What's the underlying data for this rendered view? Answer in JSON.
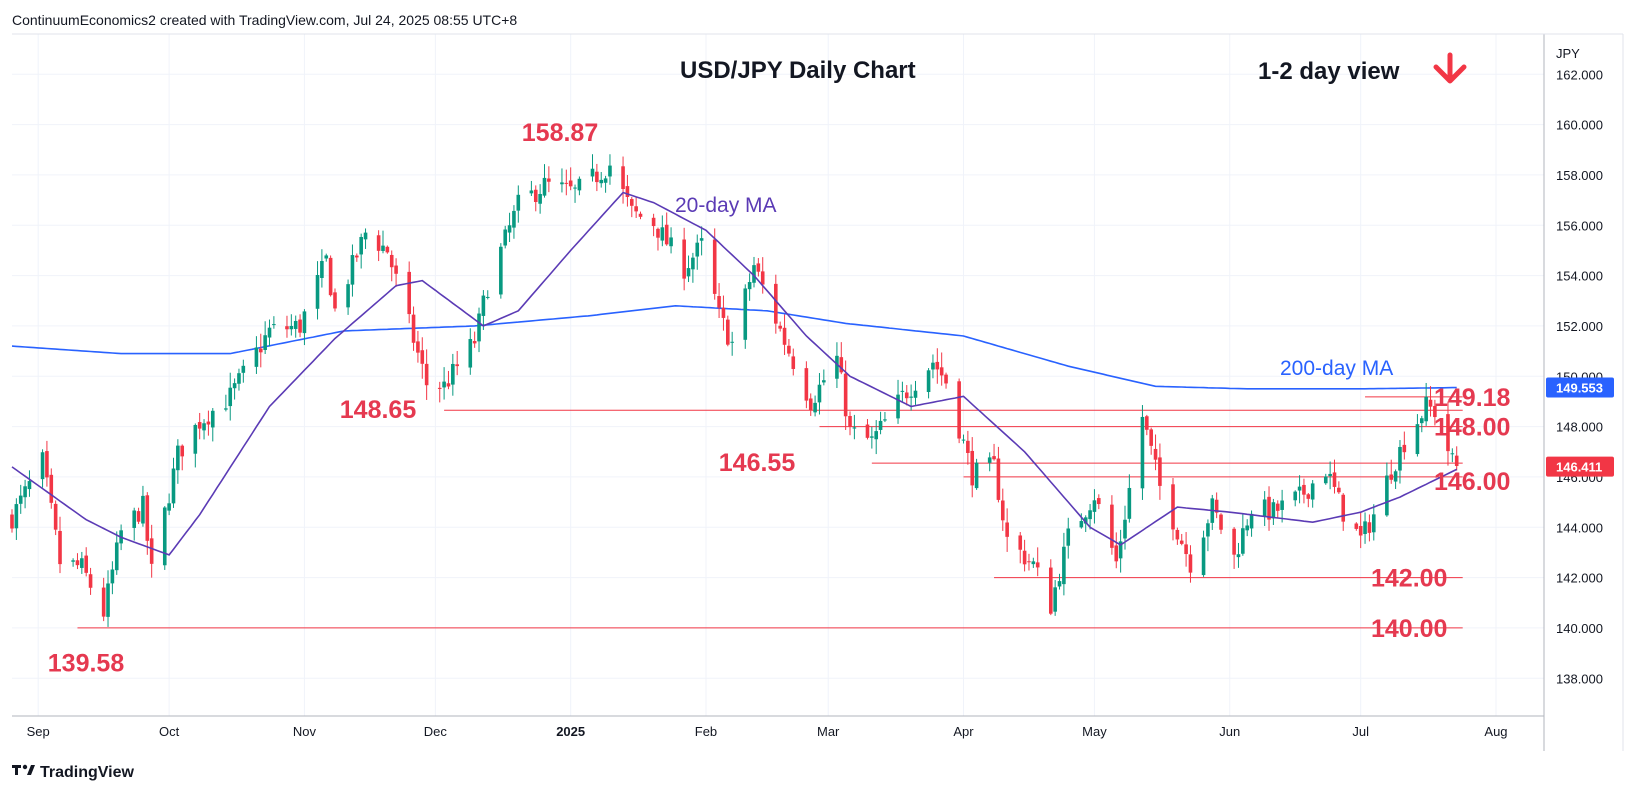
{
  "header": {
    "credit": "ContinuumEconomics2 created with TradingView.com, Jul 24, 2025 08:55 UTC+8"
  },
  "footer": {
    "brand": "TradingView",
    "logo_icon": "tradingview-logo-icon"
  },
  "chart_data": {
    "type": "candlestick",
    "title": "USD/JPY Daily Chart",
    "view_label": "1-2 day view",
    "view_direction": "down",
    "currency": "JPY",
    "ylim": [
      136.5,
      163.6
    ],
    "yticks": [
      "138.000",
      "140.000",
      "142.000",
      "144.000",
      "146.000",
      "148.000",
      "150.000",
      "152.000",
      "154.000",
      "156.000",
      "158.000",
      "160.000",
      "162.000"
    ],
    "date_range": [
      "2024-08-26",
      "2025-08-12"
    ],
    "xticks": [
      {
        "date": "2024-09-01",
        "label": "Sep"
      },
      {
        "date": "2024-10-01",
        "label": "Oct"
      },
      {
        "date": "2024-11-01",
        "label": "Nov"
      },
      {
        "date": "2024-12-01",
        "label": "Dec"
      },
      {
        "date": "2025-01-01",
        "label": "2025",
        "bold": true
      },
      {
        "date": "2025-02-01",
        "label": "Feb"
      },
      {
        "date": "2025-03-01",
        "label": "Mar"
      },
      {
        "date": "2025-04-01",
        "label": "Apr"
      },
      {
        "date": "2025-05-01",
        "label": "May"
      },
      {
        "date": "2025-06-01",
        "label": "Jun"
      },
      {
        "date": "2025-07-01",
        "label": "Jul"
      },
      {
        "date": "2025-08-01",
        "label": "Aug"
      }
    ],
    "close_anchors": [
      {
        "date": "2024-08-26",
        "value": 144.4
      },
      {
        "date": "2024-09-02",
        "value": 146.6
      },
      {
        "date": "2024-09-06",
        "value": 142.6
      },
      {
        "date": "2024-09-11",
        "value": 142.4
      },
      {
        "date": "2024-09-16",
        "value": 140.6
      },
      {
        "date": "2024-09-20",
        "value": 143.8
      },
      {
        "date": "2024-09-25",
        "value": 144.8
      },
      {
        "date": "2024-09-27",
        "value": 142.2
      },
      {
        "date": "2024-10-03",
        "value": 146.9
      },
      {
        "date": "2024-10-08",
        "value": 148.2
      },
      {
        "date": "2024-10-15",
        "value": 149.2
      },
      {
        "date": "2024-10-24",
        "value": 151.8
      },
      {
        "date": "2024-10-31",
        "value": 152.0
      },
      {
        "date": "2024-11-06",
        "value": 154.6
      },
      {
        "date": "2024-11-08",
        "value": 152.6
      },
      {
        "date": "2024-11-15",
        "value": 155.7
      },
      {
        "date": "2024-11-20",
        "value": 155.0
      },
      {
        "date": "2024-11-29",
        "value": 149.7
      },
      {
        "date": "2024-12-03",
        "value": 149.6
      },
      {
        "date": "2024-12-10",
        "value": 151.4
      },
      {
        "date": "2024-12-13",
        "value": 153.6
      },
      {
        "date": "2024-12-20",
        "value": 156.8
      },
      {
        "date": "2024-12-26",
        "value": 157.6
      },
      {
        "date": "2025-01-02",
        "value": 157.3
      },
      {
        "date": "2025-01-10",
        "value": 158.4
      },
      {
        "date": "2025-01-15",
        "value": 156.5
      },
      {
        "date": "2025-01-20",
        "value": 156.1
      },
      {
        "date": "2025-01-27",
        "value": 154.3
      },
      {
        "date": "2025-01-31",
        "value": 155.2
      },
      {
        "date": "2025-02-04",
        "value": 152.4
      },
      {
        "date": "2025-02-07",
        "value": 151.3
      },
      {
        "date": "2025-02-12",
        "value": 154.4
      },
      {
        "date": "2025-02-19",
        "value": 151.4
      },
      {
        "date": "2025-02-25",
        "value": 149.0
      },
      {
        "date": "2025-03-03",
        "value": 150.7
      },
      {
        "date": "2025-03-06",
        "value": 147.8
      },
      {
        "date": "2025-03-11",
        "value": 147.4
      },
      {
        "date": "2025-03-18",
        "value": 149.2
      },
      {
        "date": "2025-03-25",
        "value": 150.6
      },
      {
        "date": "2025-03-28",
        "value": 149.8
      },
      {
        "date": "2025-04-03",
        "value": 146.1
      },
      {
        "date": "2025-04-08",
        "value": 146.4
      },
      {
        "date": "2025-04-11",
        "value": 143.5
      },
      {
        "date": "2025-04-17",
        "value": 142.5
      },
      {
        "date": "2025-04-21",
        "value": 140.9
      },
      {
        "date": "2025-04-25",
        "value": 143.6
      },
      {
        "date": "2025-05-01",
        "value": 145.3
      },
      {
        "date": "2025-05-06",
        "value": 142.6
      },
      {
        "date": "2025-05-12",
        "value": 148.4
      },
      {
        "date": "2025-05-16",
        "value": 145.6
      },
      {
        "date": "2025-05-23",
        "value": 142.6
      },
      {
        "date": "2025-05-28",
        "value": 144.8
      },
      {
        "date": "2025-06-02",
        "value": 142.8
      },
      {
        "date": "2025-06-06",
        "value": 144.8
      },
      {
        "date": "2025-06-11",
        "value": 144.6
      },
      {
        "date": "2025-06-17",
        "value": 145.2
      },
      {
        "date": "2025-06-23",
        "value": 146.3
      },
      {
        "date": "2025-06-27",
        "value": 144.6
      },
      {
        "date": "2025-07-01",
        "value": 143.5
      },
      {
        "date": "2025-07-04",
        "value": 144.5
      },
      {
        "date": "2025-07-08",
        "value": 146.3
      },
      {
        "date": "2025-07-11",
        "value": 147.4
      },
      {
        "date": "2025-07-16",
        "value": 148.8
      },
      {
        "date": "2025-07-18",
        "value": 148.6
      },
      {
        "date": "2025-07-22",
        "value": 146.6
      },
      {
        "date": "2025-07-23",
        "value": 146.4
      }
    ],
    "ma20_anchors": [
      {
        "date": "2024-08-26",
        "value": 146.4
      },
      {
        "date": "2024-09-12",
        "value": 144.3
      },
      {
        "date": "2024-09-20",
        "value": 143.6
      },
      {
        "date": "2024-10-01",
        "value": 142.9
      },
      {
        "date": "2024-10-08",
        "value": 144.5
      },
      {
        "date": "2024-10-24",
        "value": 148.8
      },
      {
        "date": "2024-11-08",
        "value": 151.5
      },
      {
        "date": "2024-11-22",
        "value": 153.6
      },
      {
        "date": "2024-11-28",
        "value": 153.8
      },
      {
        "date": "2024-12-12",
        "value": 152.0
      },
      {
        "date": "2024-12-20",
        "value": 152.6
      },
      {
        "date": "2025-01-01",
        "value": 155.0
      },
      {
        "date": "2025-01-13",
        "value": 157.3
      },
      {
        "date": "2025-01-20",
        "value": 156.9
      },
      {
        "date": "2025-02-01",
        "value": 155.8
      },
      {
        "date": "2025-02-12",
        "value": 154.0
      },
      {
        "date": "2025-02-24",
        "value": 151.6
      },
      {
        "date": "2025-03-06",
        "value": 150.0
      },
      {
        "date": "2025-03-20",
        "value": 148.8
      },
      {
        "date": "2025-04-01",
        "value": 149.2
      },
      {
        "date": "2025-04-15",
        "value": 147.0
      },
      {
        "date": "2025-04-30",
        "value": 144.0
      },
      {
        "date": "2025-05-07",
        "value": 143.3
      },
      {
        "date": "2025-05-20",
        "value": 144.8
      },
      {
        "date": "2025-06-01",
        "value": 144.6
      },
      {
        "date": "2025-06-20",
        "value": 144.2
      },
      {
        "date": "2025-07-01",
        "value": 144.6
      },
      {
        "date": "2025-07-10",
        "value": 145.2
      },
      {
        "date": "2025-07-23",
        "value": 146.3
      }
    ],
    "ma200_anchors": [
      {
        "date": "2024-08-26",
        "value": 151.2
      },
      {
        "date": "2024-09-20",
        "value": 150.9
      },
      {
        "date": "2024-10-15",
        "value": 150.9
      },
      {
        "date": "2024-11-10",
        "value": 151.8
      },
      {
        "date": "2024-12-10",
        "value": 152.0
      },
      {
        "date": "2025-01-05",
        "value": 152.4
      },
      {
        "date": "2025-01-25",
        "value": 152.8
      },
      {
        "date": "2025-02-15",
        "value": 152.6
      },
      {
        "date": "2025-03-05",
        "value": 152.1
      },
      {
        "date": "2025-04-01",
        "value": 151.6
      },
      {
        "date": "2025-04-25",
        "value": 150.4
      },
      {
        "date": "2025-05-15",
        "value": 149.6
      },
      {
        "date": "2025-06-05",
        "value": 149.5
      },
      {
        "date": "2025-07-01",
        "value": 149.5
      },
      {
        "date": "2025-07-23",
        "value": 149.55
      }
    ],
    "series": [
      {
        "name": "20-day MA",
        "color": "#5b3bb5"
      },
      {
        "name": "200-day MA",
        "color": "#2962ff"
      }
    ],
    "levels": [
      {
        "label": "158.87",
        "value": 158.87,
        "from": "2025-01-10"
      },
      {
        "label": "148.65",
        "value": 148.65,
        "from": "2024-12-03",
        "to": "2025-07-23"
      },
      {
        "label": "146.55",
        "value": 146.55,
        "from": "2025-03-11",
        "to": "2025-07-23"
      },
      {
        "label": "149.18",
        "value": 149.18,
        "from": "2025-07-02",
        "to": "2025-07-23"
      },
      {
        "label": "148.00",
        "value": 148.0,
        "from": "2025-02-27",
        "to": "2025-07-23"
      },
      {
        "label": "146.00",
        "value": 146.0,
        "from": "2025-04-01",
        "to": "2025-07-23"
      },
      {
        "label": "142.00",
        "value": 142.0,
        "from": "2025-04-08",
        "to": "2025-07-23"
      },
      {
        "label": "140.00",
        "value": 140.0,
        "from": "2024-09-10",
        "to": "2025-07-23"
      },
      {
        "label": "139.58",
        "value": 139.58,
        "from": "2024-09-16"
      }
    ],
    "last_price": {
      "label": "146.411",
      "value": 146.411,
      "color": "#f23645"
    },
    "ma200_badge": {
      "label": "149.553",
      "value": 149.553,
      "color": "#2962ff"
    },
    "colors": {
      "up": "#089981",
      "down": "#f23645",
      "level": "#f23645",
      "level_text": "#e53950",
      "arrow": "#f23645"
    }
  }
}
